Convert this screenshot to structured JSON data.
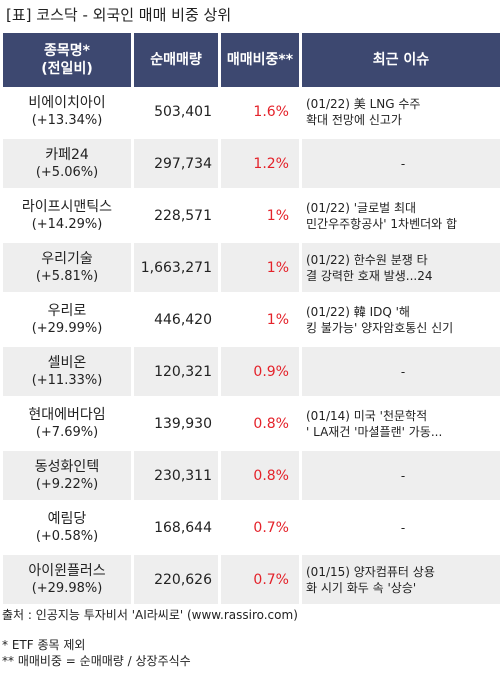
{
  "title": "[표] 코스닥 - 외국인 매매 비중 상위",
  "headers": {
    "name_line1": "종목명*",
    "name_line2": "(전일비)",
    "net_volume": "순매매량",
    "ratio": "매매비중**",
    "issue": "최근 이슈"
  },
  "rows": [
    {
      "name": "비에이치아이",
      "change": "(+13.34%)",
      "volume": "503,401",
      "ratio": "1.6%",
      "issue1": "(01/22) 美 LNG 수주",
      "issue2": " 확대 전망에 신고가"
    },
    {
      "name": "카페24",
      "change": "(+5.06%)",
      "volume": "297,734",
      "ratio": "1.2%",
      "issue1": "-",
      "issue2": ""
    },
    {
      "name": "라이프시맨틱스",
      "change": "(+14.29%)",
      "volume": "228,571",
      "ratio": "1%",
      "issue1": "(01/22) '글로벌 최대",
      "issue2": "민간우주항공사' 1차벤더와 합"
    },
    {
      "name": "우리기술",
      "change": "(+5.81%)",
      "volume": "1,663,271",
      "ratio": "1%",
      "issue1": "(01/22) 한수원 분쟁 타",
      "issue2": "결 강력한 호재 발생...24"
    },
    {
      "name": "우리로",
      "change": "(+29.99%)",
      "volume": "446,420",
      "ratio": "1%",
      "issue1": "(01/22) 韓 IDQ '해",
      "issue2": "킹 불가능' 양자암호통신 신기"
    },
    {
      "name": "셀비온",
      "change": "(+11.33%)",
      "volume": "120,321",
      "ratio": "0.9%",
      "issue1": "-",
      "issue2": ""
    },
    {
      "name": "현대에버다임",
      "change": "(+7.69%)",
      "volume": "139,930",
      "ratio": "0.8%",
      "issue1": "(01/14) 미국 '천문학적",
      "issue2": "' LA재건 '마셜플랜' 가동..."
    },
    {
      "name": "동성화인텍",
      "change": "(+9.22%)",
      "volume": "230,311",
      "ratio": "0.8%",
      "issue1": "-",
      "issue2": ""
    },
    {
      "name": "예림당",
      "change": "(+0.58%)",
      "volume": "168,644",
      "ratio": "0.7%",
      "issue1": "-",
      "issue2": ""
    },
    {
      "name": "아이윈플러스",
      "change": "(+29.98%)",
      "volume": "220,626",
      "ratio": "0.7%",
      "issue1": "(01/15) 양자컴퓨터 상용",
      "issue2": "화 시기 화두 속 '상승'"
    }
  ],
  "footer": {
    "source": "출처 : 인공지능 투자비서 'AI라씨로' (www.rassiro.com)",
    "note1": "* ETF 종목 제외",
    "note2": "** 매매비중 = 순매매량 / 상장주식수"
  },
  "colors": {
    "header_bg": "#3d4870",
    "ratio_text": "#e4222a",
    "stripe": "#eeeeee"
  }
}
